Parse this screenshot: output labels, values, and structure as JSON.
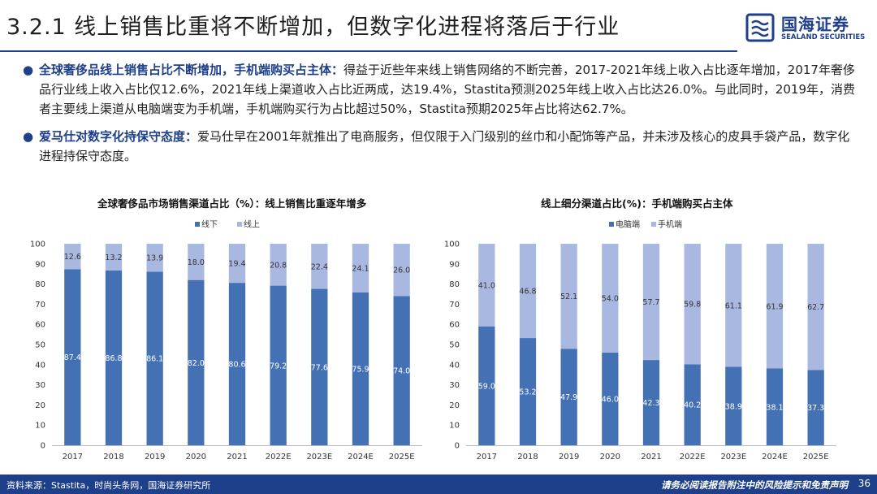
{
  "header": {
    "title": "3.2.1 线上销售比重将不断增加，但数字化进程将落后于行业"
  },
  "logo": {
    "cn": "国海证券",
    "en": "SEALAND SECURITIES"
  },
  "bullets": [
    {
      "lead": "全球奢侈品线上销售占比不断增加，手机端购买占主体：",
      "text": "得益于近些年来线上销售网络的不断完善，2017-2021年线上收入占比逐年增加，2017年奢侈品行业线上收入占比仅12.6%，2021年线上渠道收入占比近两成，达19.4%，Stastita预测2025年线上收入占比达26.0%。与此同时，2019年，消费者主要线上渠道从电脑端变为手机端，手机端购买行为占比超过50%，Stastita预期2025年占比将达62.7%。"
    },
    {
      "lead": "爱马仕对数字化持保守态度：",
      "text": "爱马仕早在2001年就推出了电商服务，但仅限于入门级别的丝巾和小配饰等产品，并未涉及核心的皮具手袋产品，数字化进程持保守态度。"
    }
  ],
  "colors": {
    "primary": "#4470b4",
    "secondary": "#a9b8e0",
    "brand": "#1e3f8a"
  },
  "chart_data": [
    {
      "type": "bar",
      "stacked": true,
      "title": "全球奢侈品市场销售渠道占比（%）：线上销售比重逐年增多",
      "categories": [
        "2017",
        "2018",
        "2019",
        "2020",
        "2021",
        "2022E",
        "2023E",
        "2024E",
        "2025E"
      ],
      "series": [
        {
          "name": "线下",
          "values": [
            87.4,
            86.8,
            86.1,
            82.0,
            80.6,
            79.2,
            77.6,
            75.9,
            74.0
          ]
        },
        {
          "name": "线上",
          "values": [
            12.6,
            13.2,
            13.9,
            18.0,
            19.4,
            20.8,
            22.4,
            24.1,
            26.0
          ]
        }
      ],
      "ylim": [
        0,
        100
      ],
      "yticks": [
        0,
        10,
        20,
        30,
        40,
        50,
        60,
        70,
        80,
        90,
        100
      ],
      "legend": "top-center"
    },
    {
      "type": "bar",
      "stacked": true,
      "title": "线上细分渠道占比(%)：手机端购买占主体",
      "categories": [
        "2017",
        "2018",
        "2019",
        "2020",
        "2021",
        "2022E",
        "2023E",
        "2024E",
        "2025E"
      ],
      "series": [
        {
          "name": "电脑端",
          "values": [
            59.0,
            53.2,
            47.9,
            46.0,
            42.3,
            40.2,
            38.9,
            38.1,
            37.3
          ]
        },
        {
          "name": "手机端",
          "values": [
            41.0,
            46.8,
            52.1,
            54.0,
            57.7,
            59.8,
            61.1,
            61.9,
            62.7
          ]
        }
      ],
      "ylim": [
        0,
        100
      ],
      "yticks": [
        0,
        10,
        20,
        30,
        40,
        50,
        60,
        70,
        80,
        90,
        100
      ],
      "legend": "top-center"
    }
  ],
  "footer": {
    "source": "资料来源：Stastita，时尚头条网，国海证券研究所",
    "disclaimer": "请务必阅读报告附注中的风险提示和免责声明",
    "page": "36"
  }
}
